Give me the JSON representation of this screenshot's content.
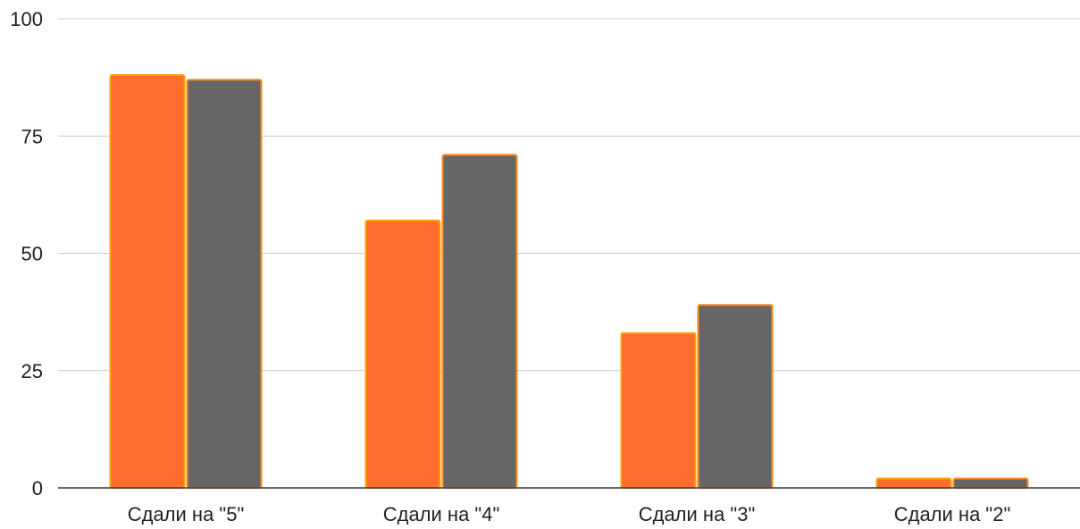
{
  "chart_data": {
    "type": "bar",
    "title": "",
    "xlabel": "",
    "ylabel": "",
    "categories": [
      "Сдали на \"5\"",
      "Сдали на \"4\"",
      "Сдали на \"3\"",
      "Сдали на \"2\""
    ],
    "series": [
      {
        "values": [
          88,
          57,
          33,
          2
        ],
        "color": "#ff6d2e",
        "edge_color": "#ffa300"
      },
      {
        "values": [
          87,
          71,
          39,
          2
        ],
        "color": "#666666",
        "edge_color": "#ff8a1c"
      }
    ],
    "yticks": [
      0,
      25,
      50,
      75,
      100
    ],
    "ytick_labels": [
      "0",
      "25",
      "50",
      "75",
      "100"
    ],
    "ylim": [
      0,
      100
    ],
    "grid": true,
    "legend": "none"
  }
}
